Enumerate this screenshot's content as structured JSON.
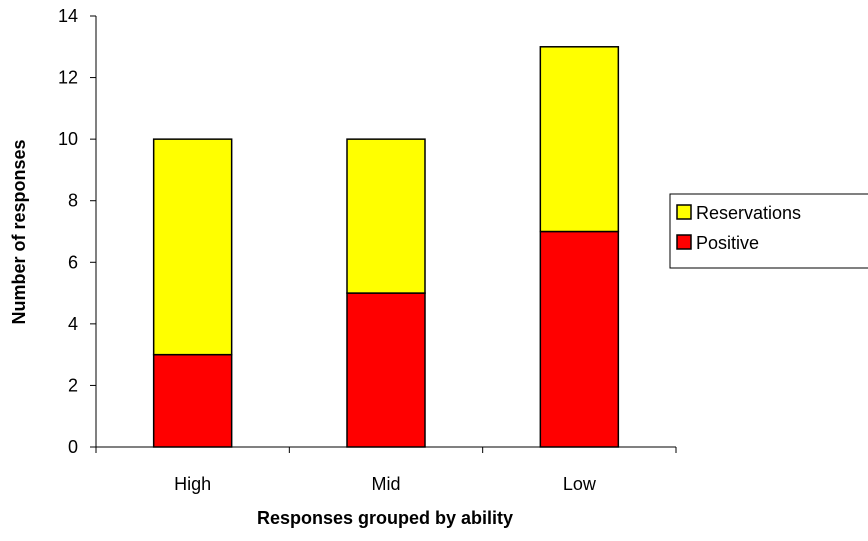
{
  "chart_data": {
    "type": "bar",
    "stacked": true,
    "categories": [
      "High",
      "Mid",
      "Low"
    ],
    "series": [
      {
        "name": "Positive",
        "values": [
          3,
          5,
          7
        ],
        "color": "#ff0000"
      },
      {
        "name": "Reservations",
        "values": [
          7,
          5,
          6
        ],
        "color": "#ffff00"
      }
    ],
    "title": "",
    "xlabel": "Responses grouped by ability",
    "ylabel": "Number of responses",
    "ylim": [
      0,
      14
    ],
    "yticks": [
      0,
      2,
      4,
      6,
      8,
      10,
      12,
      14
    ],
    "grid": false,
    "legend": {
      "position": "right",
      "order": [
        "Reservations",
        "Positive"
      ]
    }
  }
}
